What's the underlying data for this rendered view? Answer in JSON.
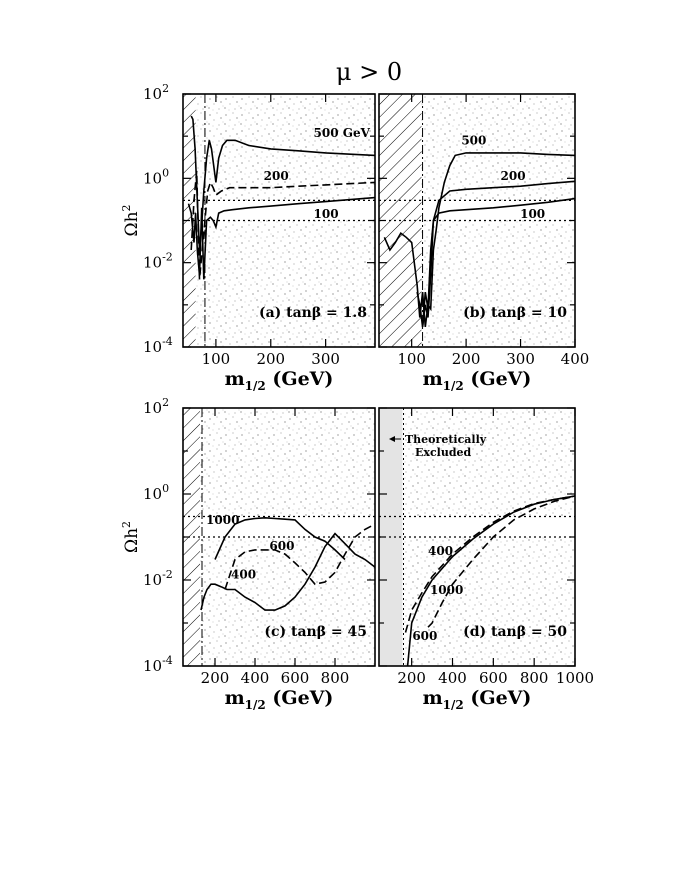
{
  "title": "μ > 0",
  "chart_data": [
    {
      "type": "line",
      "panel_label": "(a) tanβ = 1.8",
      "xlabel": "m1/2 (GeV)",
      "ylabel": "Ωh2",
      "xlim": [
        40,
        390
      ],
      "ylim_log10": [
        -4,
        2
      ],
      "x_ticks": [
        100,
        200,
        300
      ],
      "y_ticks": [
        "10-4",
        "10-2",
        "100",
        "102"
      ],
      "excluded_region_x": [
        40,
        63
      ],
      "lep_bound_x": 80,
      "band_lines_y": [
        0.1,
        0.3
      ],
      "series": [
        {
          "name": "500 GeV",
          "x": [
            55,
            58,
            62,
            66,
            70,
            74,
            78,
            83,
            88,
            92,
            96,
            100,
            105,
            112,
            120,
            135,
            160,
            200,
            250,
            300,
            390
          ],
          "y": [
            30,
            25,
            5,
            0.3,
            0.02,
            0.08,
            0.5,
            3,
            8,
            5,
            2,
            0.8,
            3,
            6,
            8,
            8,
            6,
            5,
            4.5,
            4,
            3.5
          ]
        },
        {
          "name": "200",
          "x": [
            55,
            60,
            65,
            70,
            75,
            80,
            85,
            90,
            95,
            100,
            110,
            125,
            150,
            200,
            250,
            300,
            390
          ],
          "y": [
            0.02,
            0.3,
            1.5,
            0.004,
            0.02,
            0.1,
            0.5,
            0.8,
            0.6,
            0.4,
            0.5,
            0.6,
            0.6,
            0.6,
            0.65,
            0.7,
            0.8
          ]
        },
        {
          "name": "100",
          "x": [
            50,
            55,
            60,
            63,
            66,
            70,
            74,
            78,
            83,
            90,
            95,
            100,
            105,
            115,
            130,
            160,
            200,
            250,
            300,
            390
          ],
          "y": [
            0.25,
            0.15,
            0.03,
            0.15,
            0.02,
            0.005,
            0.2,
            0.004,
            0.1,
            0.12,
            0.1,
            0.07,
            0.15,
            0.17,
            0.18,
            0.2,
            0.22,
            0.25,
            0.28,
            0.35
          ]
        }
      ],
      "curve_labels": [
        "500 GeV",
        "200",
        "100"
      ]
    },
    {
      "type": "line",
      "panel_label": "(b) tanβ = 10",
      "xlabel": "m1/2 (GeV)",
      "ylabel": "",
      "xlim": [
        40,
        400
      ],
      "ylim_log10": [
        -4,
        2
      ],
      "x_ticks": [
        100,
        200,
        300,
        400
      ],
      "y_ticks": [],
      "excluded_region_x": [
        40,
        118
      ],
      "lep_bound_x": 120,
      "band_lines_y": [
        0.1,
        0.3
      ],
      "series": [
        {
          "name": "500",
          "x": [
            50,
            60,
            70,
            80,
            90,
            100,
            110,
            115,
            120,
            125,
            130,
            135,
            140,
            145,
            150,
            160,
            170,
            180,
            200,
            250,
            300,
            350,
            400
          ],
          "y": [
            0.04,
            0.02,
            0.03,
            0.05,
            0.04,
            0.03,
            0.003,
            0.0005,
            0.002,
            0.0003,
            0.001,
            0.0008,
            0.02,
            0.06,
            0.2,
            0.8,
            2,
            3.5,
            4,
            4,
            4,
            3.7,
            3.5
          ]
        },
        {
          "name": "200",
          "x": [
            110,
            115,
            120,
            125,
            130,
            135,
            140,
            150,
            170,
            200,
            250,
            300,
            350,
            400
          ],
          "y": [
            0.002,
            0.001,
            0.0003,
            0.002,
            0.0008,
            0.02,
            0.1,
            0.3,
            0.5,
            0.55,
            0.6,
            0.65,
            0.75,
            0.85
          ]
        },
        {
          "name": "100",
          "x": [
            120,
            125,
            130,
            135,
            140,
            150,
            170,
            200,
            250,
            300,
            350,
            400
          ],
          "y": [
            0.0003,
            0.001,
            0.0005,
            0.005,
            0.1,
            0.15,
            0.17,
            0.18,
            0.2,
            0.23,
            0.27,
            0.33
          ]
        }
      ],
      "curve_labels": [
        "500",
        "200",
        "100"
      ]
    },
    {
      "type": "line",
      "panel_label": "(c) tanβ = 45",
      "xlabel": "m1/2 (GeV)",
      "ylabel": "Ωh2",
      "xlim": [
        40,
        1000
      ],
      "ylim_log10": [
        -4,
        2
      ],
      "x_ticks": [
        200,
        400,
        600,
        800
      ],
      "y_ticks": [
        "10-4",
        "10-2",
        "100",
        "102"
      ],
      "excluded_region_x": [
        40,
        125
      ],
      "lep_bound_x": 135,
      "band_lines_y": [
        0.1,
        0.3
      ],
      "series": [
        {
          "name": "1000",
          "x": [
            130,
            145,
            160,
            180,
            200,
            230,
            260,
            300,
            350,
            400,
            450,
            500,
            550,
            600,
            650,
            700,
            750,
            800,
            850,
            900,
            950,
            1000
          ],
          "y": [
            0.002,
            0.004,
            0.006,
            0.008,
            0.008,
            0.007,
            0.006,
            0.006,
            0.004,
            0.003,
            0.002,
            0.002,
            0.0025,
            0.004,
            0.008,
            0.02,
            0.06,
            0.12,
            0.07,
            0.04,
            0.03,
            0.02
          ]
        },
        {
          "name": "600",
          "x": [
            250,
            300,
            350,
            400,
            450,
            500,
            550,
            600,
            650,
            700,
            750,
            800,
            850,
            900,
            950,
            1000
          ],
          "y": [
            0.006,
            0.03,
            0.045,
            0.05,
            0.05,
            0.05,
            0.04,
            0.025,
            0.015,
            0.008,
            0.009,
            0.015,
            0.04,
            0.1,
            0.15,
            0.2
          ]
        },
        {
          "name": "400",
          "x": [
            200,
            250,
            300,
            350,
            400,
            450,
            500,
            550,
            600,
            650,
            700,
            750,
            800,
            850
          ],
          "y": [
            0.03,
            0.1,
            0.2,
            0.25,
            0.27,
            0.28,
            0.27,
            0.26,
            0.25,
            0.15,
            0.1,
            0.08,
            0.05,
            0.03
          ]
        }
      ],
      "curve_labels": [
        "1000",
        "600",
        "400"
      ]
    },
    {
      "type": "line",
      "panel_label": "(d) tanβ = 50",
      "xlabel": "m1/2 (GeV)",
      "ylabel": "",
      "xlim": [
        40,
        1000
      ],
      "ylim_log10": [
        -4,
        2
      ],
      "x_ticks": [
        200,
        400,
        600,
        800,
        1000
      ],
      "y_ticks": [],
      "excluded_region_x": [
        40,
        155
      ],
      "lep_bound_x": 160,
      "band_lines_y": [
        0.1,
        0.3
      ],
      "annotation": [
        "Theoretically",
        "Excluded"
      ],
      "series": [
        {
          "name": "400",
          "x": [
            170,
            200,
            250,
            300,
            400,
            500,
            600,
            700,
            800,
            900,
            1000
          ],
          "y": [
            0.0006,
            0.002,
            0.005,
            0.012,
            0.04,
            0.1,
            0.22,
            0.4,
            0.6,
            0.75,
            0.9
          ]
        },
        {
          "name": "600",
          "x": [
            180,
            200,
            250,
            300,
            400,
            500,
            600,
            700,
            800,
            900,
            1000
          ],
          "y": [
            0.0001,
            0.001,
            0.004,
            0.01,
            0.035,
            0.09,
            0.2,
            0.38,
            0.58,
            0.75,
            0.9
          ]
        },
        {
          "name": "1000",
          "x": [
            280,
            300,
            350,
            400,
            500,
            600,
            700,
            800,
            900,
            1000
          ],
          "y": [
            0.0008,
            0.001,
            0.003,
            0.008,
            0.03,
            0.1,
            0.25,
            0.45,
            0.68,
            0.9
          ]
        }
      ],
      "curve_labels": [
        "400",
        "1000",
        "600"
      ]
    }
  ]
}
